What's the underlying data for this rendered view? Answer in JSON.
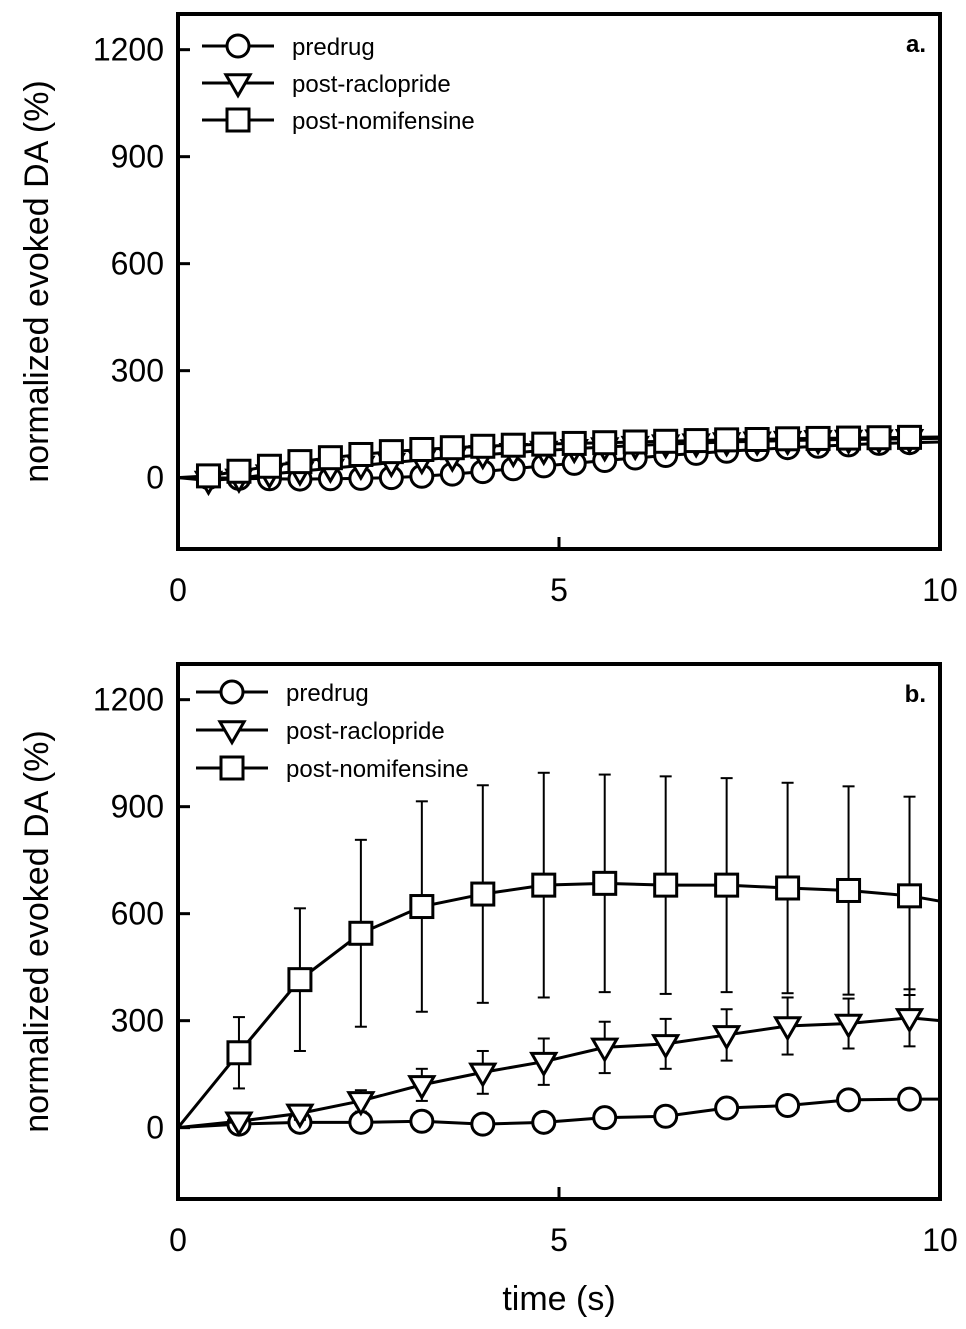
{
  "chart_data": [
    {
      "type": "line",
      "panel_label": "a.",
      "xlabel": "",
      "ylabel": "normalized evoked DA (%)",
      "xlim": [
        0,
        10
      ],
      "ylim": [
        -200,
        1300
      ],
      "xticks": [
        "0",
        "5",
        "10"
      ],
      "yticks": [
        "0",
        "300",
        "600",
        "900",
        "1200"
      ],
      "legend_position": "top-left",
      "x": [
        0,
        0.4,
        0.8,
        1.2,
        1.6,
        2.0,
        2.4,
        2.8,
        3.2,
        3.6,
        4.0,
        4.4,
        4.8,
        5.2,
        5.6,
        6.0,
        6.4,
        6.8,
        7.2,
        7.6,
        8.0,
        8.4,
        8.8,
        9.2,
        9.6,
        10.0
      ],
      "series": [
        {
          "name": "predrug",
          "marker": "circle",
          "values": [
            0,
            0,
            -2,
            -3,
            -4,
            -3,
            -2,
            0,
            4,
            10,
            17,
            25,
            33,
            40,
            48,
            55,
            62,
            68,
            74,
            79,
            84,
            88,
            92,
            96,
            98,
            100
          ]
        },
        {
          "name": "post-raclopride",
          "marker": "triangle-down",
          "values": [
            0,
            -8,
            -2,
            10,
            18,
            26,
            34,
            42,
            50,
            57,
            64,
            70,
            76,
            81,
            86,
            90,
            94,
            97,
            100,
            102,
            104,
            106,
            107,
            108,
            109,
            110
          ]
        },
        {
          "name": "post-nomifensine",
          "marker": "square",
          "values": [
            0,
            5,
            18,
            32,
            45,
            56,
            65,
            73,
            79,
            84,
            88,
            91,
            94,
            96,
            98,
            100,
            102,
            104,
            106,
            107,
            109,
            110,
            111,
            112,
            113,
            114
          ]
        }
      ]
    },
    {
      "type": "line",
      "panel_label": "b.",
      "xlabel": "time (s)",
      "ylabel": "normalized evoked DA (%)",
      "xlim": [
        0,
        10
      ],
      "ylim": [
        -200,
        1300
      ],
      "xticks": [
        "0",
        "5",
        "10"
      ],
      "yticks": [
        "0",
        "300",
        "600",
        "900",
        "1200"
      ],
      "legend_position": "top-left",
      "x": [
        0,
        0.8,
        1.6,
        2.4,
        3.2,
        4.0,
        4.8,
        5.6,
        6.4,
        7.2,
        8.0,
        8.8,
        9.6,
        10.0
      ],
      "series": [
        {
          "name": "predrug",
          "marker": "circle",
          "values": [
            0,
            10,
            15,
            15,
            18,
            10,
            15,
            28,
            32,
            55,
            62,
            78,
            80,
            80
          ]
        },
        {
          "name": "post-raclopride",
          "marker": "triangle-down",
          "values": [
            0,
            18,
            40,
            75,
            120,
            155,
            185,
            225,
            235,
            260,
            285,
            292,
            308,
            300
          ],
          "error": [
            null,
            10,
            18,
            30,
            45,
            60,
            65,
            72,
            70,
            72,
            80,
            70,
            80,
            null
          ]
        },
        {
          "name": "post-nomifensine",
          "marker": "square",
          "values": [
            0,
            210,
            415,
            545,
            620,
            655,
            680,
            685,
            680,
            680,
            672,
            665,
            650,
            635
          ],
          "error": [
            null,
            100,
            200,
            262,
            295,
            305,
            315,
            305,
            305,
            300,
            295,
            292,
            278,
            null
          ]
        }
      ]
    }
  ]
}
